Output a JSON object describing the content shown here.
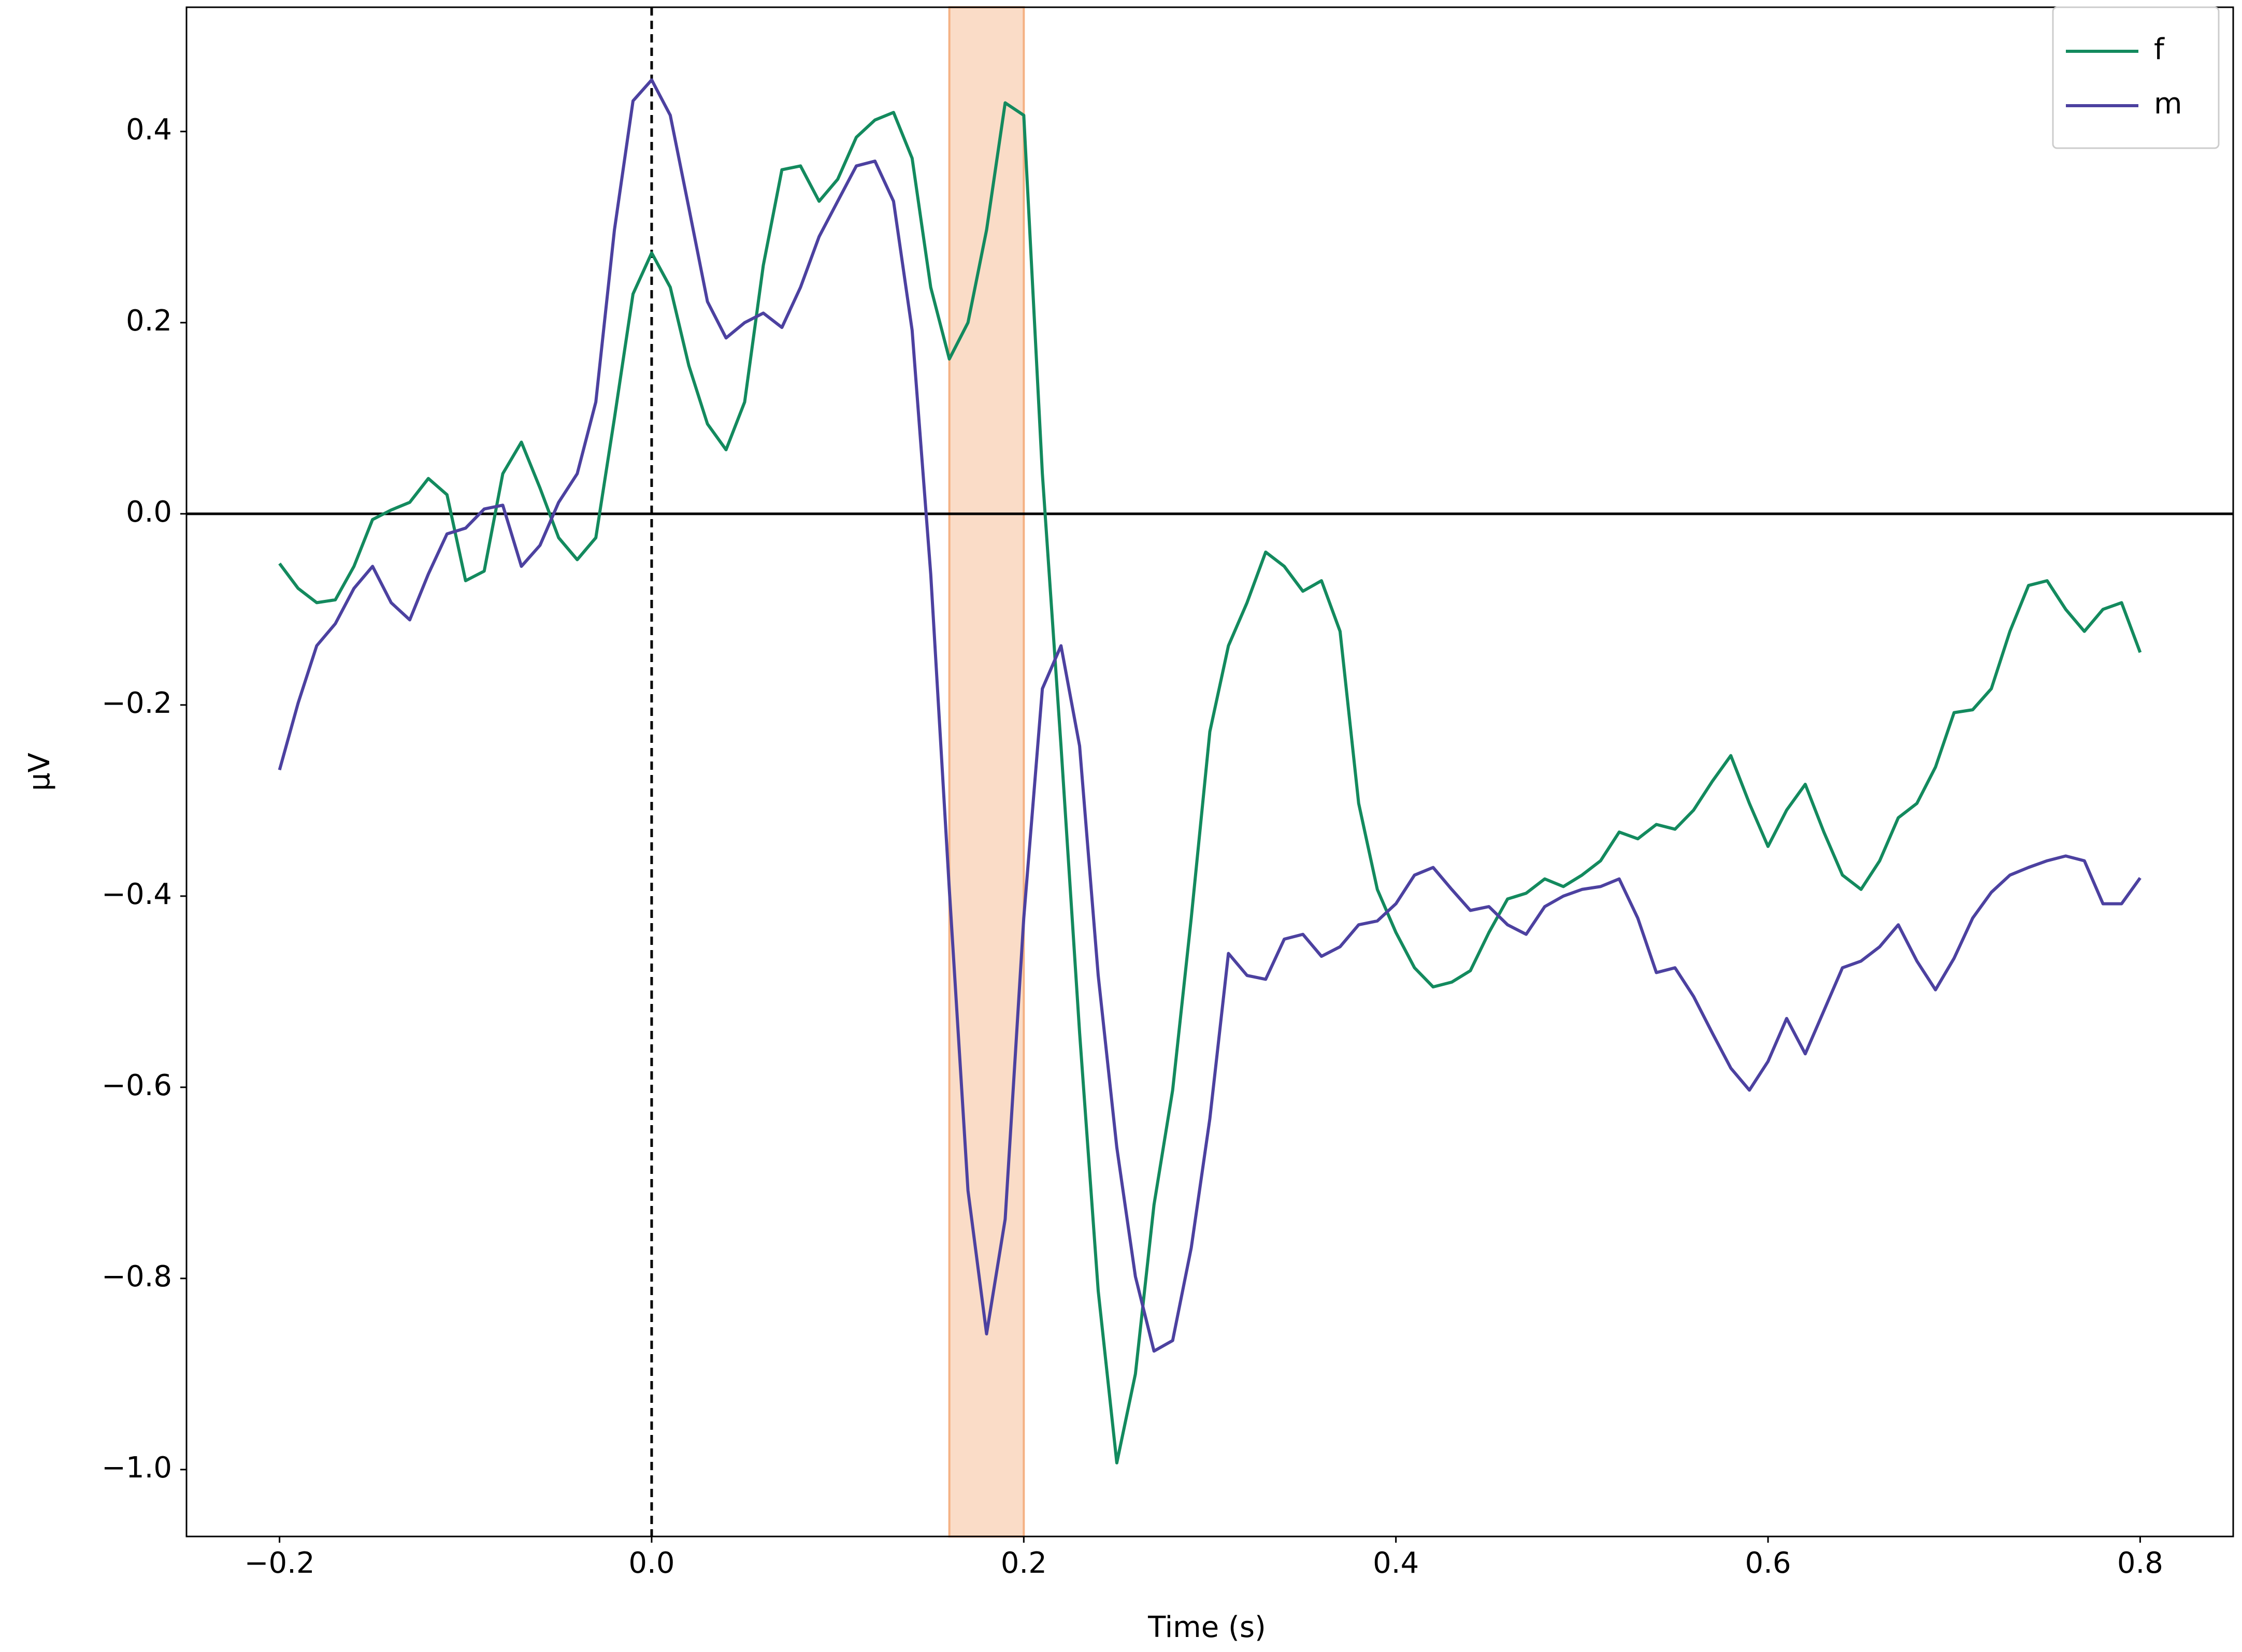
{
  "chart_data": {
    "type": "line",
    "xlabel": "Time (s)",
    "ylabel": "μV",
    "xlim": [
      -0.25,
      0.85
    ],
    "ylim": [
      -1.07,
      0.53
    ],
    "xticks": [
      {
        "value": -0.2,
        "label": "−0.2"
      },
      {
        "value": 0,
        "label": "0.0"
      },
      {
        "value": 0.2,
        "label": "0.2"
      },
      {
        "value": 0.4,
        "label": "0.4"
      },
      {
        "value": 0.6,
        "label": "0.6"
      },
      {
        "value": 0.8,
        "label": "0.8"
      }
    ],
    "yticks": [
      {
        "value": -1.0,
        "label": "−1.0"
      },
      {
        "value": -0.8,
        "label": "−0.8"
      },
      {
        "value": -0.6,
        "label": "−0.6"
      },
      {
        "value": -0.4,
        "label": "−0.4"
      },
      {
        "value": -0.2,
        "label": "−0.2"
      },
      {
        "value": 0,
        "label": "0.0"
      },
      {
        "value": 0.2,
        "label": "0.2"
      },
      {
        "value": 0.4,
        "label": "0.4"
      }
    ],
    "vlines": [
      0
    ],
    "hlines": [
      0
    ],
    "span": [
      0.16,
      0.2
    ],
    "span_color": "#f4b183",
    "legend": "upper right",
    "x": [
      -0.2,
      -0.19,
      -0.18,
      -0.17,
      -0.16,
      -0.15,
      -0.14,
      -0.13,
      -0.12,
      -0.11,
      -0.1,
      -0.09,
      -0.08,
      -0.07,
      -0.06,
      -0.05,
      -0.04,
      -0.03,
      -0.02,
      -0.01,
      0,
      0.01,
      0.02,
      0.03,
      0.04,
      0.05,
      0.06,
      0.07,
      0.08,
      0.09,
      0.1,
      0.11,
      0.12,
      0.13,
      0.14,
      0.15,
      0.16,
      0.17,
      0.18,
      0.19,
      0.2,
      0.21,
      0.22,
      0.23,
      0.24,
      0.25,
      0.26,
      0.27,
      0.28,
      0.29,
      0.3,
      0.31,
      0.32,
      0.33,
      0.34,
      0.35,
      0.36,
      0.37,
      0.38,
      0.39,
      0.4,
      0.41,
      0.42,
      0.43,
      0.44,
      0.45,
      0.46,
      0.47,
      0.48,
      0.49,
      0.5,
      0.51,
      0.52,
      0.53,
      0.54,
      0.55,
      0.56,
      0.57,
      0.58,
      0.59,
      0.6,
      0.61,
      0.62,
      0.63,
      0.64,
      0.65,
      0.66,
      0.67,
      0.68,
      0.69,
      0.7,
      0.71,
      0.72,
      0.73,
      0.74,
      0.75,
      0.76,
      0.77,
      0.78,
      0.79,
      0.8
    ],
    "series": [
      {
        "name": "f",
        "color": "#138a5e",
        "values": [
          -0.052,
          -0.078,
          -0.093,
          -0.09,
          -0.055,
          -0.006,
          0.004,
          0.012,
          0.037,
          0.02,
          -0.07,
          -0.06,
          0.042,
          0.075,
          0.027,
          -0.025,
          -0.048,
          -0.025,
          0.1,
          0.23,
          0.273,
          0.237,
          0.155,
          0.094,
          0.067,
          0.117,
          0.26,
          0.36,
          0.364,
          0.327,
          0.35,
          0.394,
          0.412,
          0.42,
          0.372,
          0.237,
          0.162,
          0.2,
          0.297,
          0.43,
          0.417,
          0.042,
          -0.243,
          -0.543,
          -0.813,
          -0.993,
          -0.9,
          -0.723,
          -0.603,
          -0.423,
          -0.228,
          -0.138,
          -0.093,
          -0.04,
          -0.055,
          -0.081,
          -0.07,
          -0.123,
          -0.303,
          -0.393,
          -0.438,
          -0.475,
          -0.495,
          -0.49,
          -0.478,
          -0.438,
          -0.403,
          -0.397,
          -0.382,
          -0.39,
          -0.378,
          -0.363,
          -0.333,
          -0.34,
          -0.325,
          -0.33,
          -0.31,
          -0.28,
          -0.253,
          -0.303,
          -0.348,
          -0.31,
          -0.283,
          -0.333,
          -0.378,
          -0.393,
          -0.363,
          -0.318,
          -0.303,
          -0.265,
          -0.208,
          -0.205,
          -0.183,
          -0.123,
          -0.075,
          -0.07,
          -0.1,
          -0.123,
          -0.1,
          -0.093,
          -0.145
        ]
      },
      {
        "name": "m",
        "color": "#4c41a0",
        "values": [
          -0.268,
          -0.198,
          -0.138,
          -0.115,
          -0.078,
          -0.055,
          -0.093,
          -0.111,
          -0.063,
          -0.021,
          -0.015,
          0.005,
          0.009,
          -0.055,
          -0.033,
          0.012,
          0.042,
          0.117,
          0.297,
          0.432,
          0.454,
          0.417,
          0.32,
          0.222,
          0.184,
          0.2,
          0.21,
          0.195,
          0.237,
          0.29,
          0.327,
          0.364,
          0.369,
          0.327,
          0.192,
          -0.063,
          -0.393,
          -0.708,
          -0.858,
          -0.738,
          -0.423,
          -0.183,
          -0.138,
          -0.243,
          -0.483,
          -0.663,
          -0.798,
          -0.876,
          -0.865,
          -0.768,
          -0.633,
          -0.46,
          -0.483,
          -0.487,
          -0.445,
          -0.44,
          -0.463,
          -0.453,
          -0.43,
          -0.426,
          -0.408,
          -0.378,
          -0.37,
          -0.393,
          -0.415,
          -0.411,
          -0.43,
          -0.44,
          -0.411,
          -0.4,
          -0.393,
          -0.39,
          -0.382,
          -0.423,
          -0.48,
          -0.475,
          -0.505,
          -0.543,
          -0.58,
          -0.603,
          -0.573,
          -0.528,
          -0.565,
          -0.52,
          -0.475,
          -0.468,
          -0.453,
          -0.43,
          -0.468,
          -0.498,
          -0.465,
          -0.423,
          -0.396,
          -0.378,
          -0.37,
          -0.363,
          -0.358,
          -0.363,
          -0.408,
          -0.408,
          -0.381
        ]
      }
    ]
  }
}
